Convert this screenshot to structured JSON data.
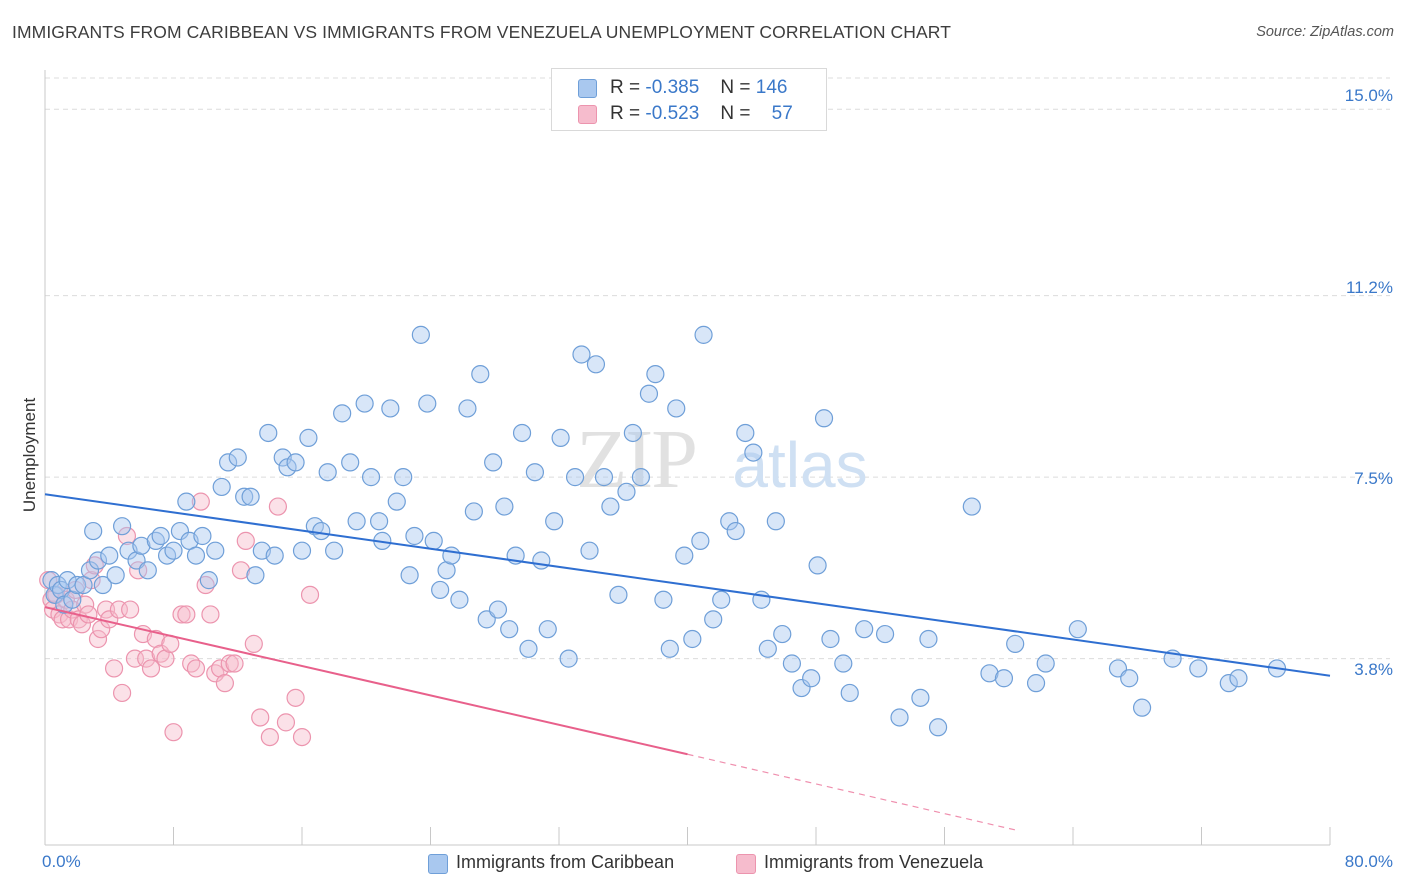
{
  "header": {
    "title": "IMMIGRANTS FROM CARIBBEAN VS IMMIGRANTS FROM VENEZUELA UNEMPLOYMENT CORRELATION CHART",
    "source": "Source: ZipAtlas.com"
  },
  "legend_top": {
    "rows": [
      {
        "r_label": "R =",
        "r_value": "-0.385",
        "n_label": "N =",
        "n_value": "146"
      },
      {
        "r_label": "R =",
        "r_value": "-0.523",
        "n_label": "N =",
        "n_value": "57"
      }
    ]
  },
  "watermark": {
    "zip": "ZIP",
    "atlas": "atlas"
  },
  "colors": {
    "caribbean_fill": "#a9c8ef",
    "caribbean_stroke": "#6f9fd8",
    "caribbean_line": "#2f6fd1",
    "venezuela_fill": "#f6bccd",
    "venezuela_stroke": "#ec94ae",
    "venezuela_line": "#e8608b",
    "tick_label": "#3a78c9",
    "grid": "#dcdcdc"
  },
  "chart_data": {
    "type": "scatter",
    "title": "IMMIGRANTS FROM CARIBBEAN VS IMMIGRANTS FROM VENEZUELA UNEMPLOYMENT CORRELATION CHART",
    "ylabel": "Unemployment",
    "xlabel": "",
    "xlim": [
      0,
      80
    ],
    "ylim": [
      0,
      15.8
    ],
    "x_tick_labels": [
      "0.0%",
      "80.0%"
    ],
    "y_ticks": [
      3.8,
      7.5,
      11.2,
      15.0
    ],
    "y_tick_labels": [
      "3.8%",
      "7.5%",
      "11.2%",
      "15.0%"
    ],
    "grid": "horizontal dashed",
    "legend_position": "top-center",
    "series": [
      {
        "name": "Immigrants from Caribbean",
        "color": "#6f9fd8",
        "r": -0.385,
        "n": 146,
        "trend": {
          "x": [
            0,
            80
          ],
          "y": [
            7.15,
            3.45
          ]
        },
        "points": [
          [
            0.4,
            5.4
          ],
          [
            0.6,
            5.1
          ],
          [
            0.8,
            5.3
          ],
          [
            1.0,
            5.2
          ],
          [
            1.2,
            4.9
          ],
          [
            1.4,
            5.4
          ],
          [
            1.7,
            5.0
          ],
          [
            2.0,
            5.3
          ],
          [
            2.4,
            5.3
          ],
          [
            2.8,
            5.6
          ],
          [
            3.0,
            6.4
          ],
          [
            3.3,
            5.8
          ],
          [
            3.6,
            5.3
          ],
          [
            4.0,
            5.9
          ],
          [
            4.4,
            5.5
          ],
          [
            4.8,
            6.5
          ],
          [
            5.2,
            6.0
          ],
          [
            5.7,
            5.8
          ],
          [
            6.0,
            6.1
          ],
          [
            6.4,
            5.6
          ],
          [
            6.9,
            6.2
          ],
          [
            7.2,
            6.3
          ],
          [
            7.6,
            5.9
          ],
          [
            8.0,
            6.0
          ],
          [
            8.4,
            6.4
          ],
          [
            8.8,
            7.0
          ],
          [
            9.0,
            6.2
          ],
          [
            9.4,
            5.9
          ],
          [
            9.8,
            6.3
          ],
          [
            10.2,
            5.4
          ],
          [
            10.6,
            6.0
          ],
          [
            11.0,
            7.3
          ],
          [
            11.4,
            7.8
          ],
          [
            12.0,
            7.9
          ],
          [
            12.4,
            7.1
          ],
          [
            12.8,
            7.1
          ],
          [
            13.1,
            5.5
          ],
          [
            13.5,
            6.0
          ],
          [
            13.9,
            8.4
          ],
          [
            14.3,
            5.9
          ],
          [
            14.8,
            7.9
          ],
          [
            15.1,
            7.7
          ],
          [
            15.6,
            7.8
          ],
          [
            16.0,
            6.0
          ],
          [
            16.4,
            8.3
          ],
          [
            16.8,
            6.5
          ],
          [
            17.2,
            6.4
          ],
          [
            17.6,
            7.6
          ],
          [
            18.0,
            6.0
          ],
          [
            18.5,
            8.8
          ],
          [
            19.0,
            7.8
          ],
          [
            19.4,
            6.6
          ],
          [
            19.9,
            9.0
          ],
          [
            20.3,
            7.5
          ],
          [
            20.8,
            6.6
          ],
          [
            21.0,
            6.2
          ],
          [
            21.5,
            8.9
          ],
          [
            21.9,
            7.0
          ],
          [
            22.3,
            7.5
          ],
          [
            22.7,
            5.5
          ],
          [
            23.0,
            6.3
          ],
          [
            23.4,
            10.4
          ],
          [
            23.8,
            9.0
          ],
          [
            24.2,
            6.2
          ],
          [
            24.6,
            5.2
          ],
          [
            25.0,
            5.6
          ],
          [
            25.3,
            5.9
          ],
          [
            25.8,
            5.0
          ],
          [
            26.3,
            8.9
          ],
          [
            26.7,
            6.8
          ],
          [
            27.1,
            9.6
          ],
          [
            27.5,
            4.6
          ],
          [
            27.9,
            7.8
          ],
          [
            28.2,
            4.8
          ],
          [
            28.6,
            6.9
          ],
          [
            28.9,
            4.4
          ],
          [
            29.3,
            5.9
          ],
          [
            29.7,
            8.4
          ],
          [
            30.1,
            4.0
          ],
          [
            30.5,
            7.6
          ],
          [
            30.9,
            5.8
          ],
          [
            31.3,
            4.4
          ],
          [
            31.7,
            6.6
          ],
          [
            32.1,
            8.3
          ],
          [
            32.6,
            3.8
          ],
          [
            33.0,
            7.5
          ],
          [
            33.4,
            10.0
          ],
          [
            33.9,
            6.0
          ],
          [
            34.3,
            9.8
          ],
          [
            34.8,
            7.5
          ],
          [
            35.2,
            6.9
          ],
          [
            35.7,
            5.1
          ],
          [
            36.2,
            7.2
          ],
          [
            36.6,
            8.4
          ],
          [
            37.1,
            7.5
          ],
          [
            37.6,
            9.2
          ],
          [
            38.0,
            9.6
          ],
          [
            38.5,
            5.0
          ],
          [
            38.9,
            4.0
          ],
          [
            39.3,
            8.9
          ],
          [
            39.8,
            5.9
          ],
          [
            40.3,
            4.2
          ],
          [
            40.8,
            6.2
          ],
          [
            41.0,
            10.4
          ],
          [
            41.6,
            4.6
          ],
          [
            42.1,
            5.0
          ],
          [
            42.6,
            6.6
          ],
          [
            43.0,
            6.4
          ],
          [
            43.6,
            8.4
          ],
          [
            44.1,
            8.0
          ],
          [
            44.6,
            5.0
          ],
          [
            45.0,
            4.0
          ],
          [
            45.5,
            6.6
          ],
          [
            45.9,
            4.3
          ],
          [
            46.5,
            3.7
          ],
          [
            47.1,
            3.2
          ],
          [
            47.7,
            3.4
          ],
          [
            48.1,
            5.7
          ],
          [
            48.5,
            8.7
          ],
          [
            48.9,
            4.2
          ],
          [
            49.7,
            3.7
          ],
          [
            50.1,
            3.1
          ],
          [
            51.0,
            4.4
          ],
          [
            52.3,
            4.3
          ],
          [
            53.2,
            2.6
          ],
          [
            54.5,
            3.0
          ],
          [
            55.0,
            4.2
          ],
          [
            55.6,
            2.4
          ],
          [
            57.7,
            6.9
          ],
          [
            58.8,
            3.5
          ],
          [
            59.7,
            3.4
          ],
          [
            60.4,
            4.1
          ],
          [
            61.7,
            3.3
          ],
          [
            62.3,
            3.7
          ],
          [
            64.3,
            4.4
          ],
          [
            66.8,
            3.6
          ],
          [
            67.5,
            3.4
          ],
          [
            68.3,
            2.8
          ],
          [
            70.2,
            3.8
          ],
          [
            71.8,
            3.6
          ],
          [
            73.7,
            3.3
          ],
          [
            74.3,
            3.4
          ],
          [
            76.7,
            3.6
          ]
        ]
      },
      {
        "name": "Immigrants from Venezuela",
        "color": "#ec94ae",
        "r": -0.523,
        "n": 57,
        "trend": {
          "x": [
            0,
            40
          ],
          "y": [
            4.85,
            1.85
          ]
        },
        "trend_dashed": {
          "x": [
            40,
            60.5
          ],
          "y": [
            1.85,
            0.3
          ]
        },
        "points": [
          [
            0.2,
            5.4
          ],
          [
            0.4,
            5.0
          ],
          [
            0.5,
            4.8
          ],
          [
            0.7,
            5.1
          ],
          [
            0.9,
            4.7
          ],
          [
            1.1,
            4.6
          ],
          [
            1.3,
            5.0
          ],
          [
            1.5,
            4.6
          ],
          [
            1.7,
            4.8
          ],
          [
            1.9,
            5.2
          ],
          [
            2.1,
            4.6
          ],
          [
            2.3,
            4.5
          ],
          [
            2.5,
            4.9
          ],
          [
            2.7,
            4.7
          ],
          [
            2.9,
            5.4
          ],
          [
            3.1,
            5.7
          ],
          [
            3.3,
            4.2
          ],
          [
            3.5,
            4.4
          ],
          [
            3.8,
            4.8
          ],
          [
            4.0,
            4.6
          ],
          [
            4.3,
            3.6
          ],
          [
            4.6,
            4.8
          ],
          [
            4.8,
            3.1
          ],
          [
            5.1,
            6.3
          ],
          [
            5.3,
            4.8
          ],
          [
            5.6,
            3.8
          ],
          [
            5.8,
            5.6
          ],
          [
            6.1,
            4.3
          ],
          [
            6.3,
            3.8
          ],
          [
            6.6,
            3.6
          ],
          [
            6.9,
            4.2
          ],
          [
            7.2,
            3.9
          ],
          [
            7.5,
            3.8
          ],
          [
            7.8,
            4.1
          ],
          [
            8.0,
            2.3
          ],
          [
            8.5,
            4.7
          ],
          [
            8.8,
            4.7
          ],
          [
            9.1,
            3.7
          ],
          [
            9.4,
            3.6
          ],
          [
            9.7,
            7.0
          ],
          [
            10.0,
            5.3
          ],
          [
            10.3,
            4.7
          ],
          [
            10.6,
            3.5
          ],
          [
            10.9,
            3.6
          ],
          [
            11.2,
            3.3
          ],
          [
            11.5,
            3.7
          ],
          [
            11.8,
            3.7
          ],
          [
            12.2,
            5.6
          ],
          [
            12.5,
            6.2
          ],
          [
            13.0,
            4.1
          ],
          [
            13.4,
            2.6
          ],
          [
            14.0,
            2.2
          ],
          [
            14.5,
            6.9
          ],
          [
            15.0,
            2.5
          ],
          [
            15.6,
            3.0
          ],
          [
            16.0,
            2.2
          ],
          [
            16.5,
            5.1
          ]
        ]
      }
    ]
  },
  "axis": {
    "ylabel": "Unemployment",
    "x_tick_left": "0.0%",
    "x_tick_right": "80.0%",
    "y_tick_labels": [
      "15.0%",
      "11.2%",
      "7.5%",
      "3.8%"
    ]
  },
  "legend_bottom": {
    "items": [
      "Immigrants from Caribbean",
      "Immigrants from Venezuela"
    ]
  }
}
